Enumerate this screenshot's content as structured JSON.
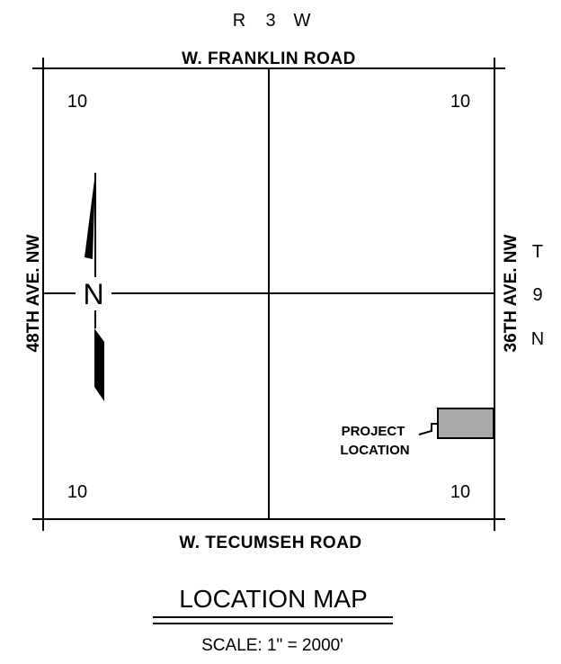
{
  "map": {
    "range": [
      "R",
      "3",
      "W"
    ],
    "township": [
      "T",
      "9",
      "N"
    ],
    "roads": {
      "north": "W. FRANKLIN ROAD",
      "south": "W. TECUMSEH ROAD",
      "west": "48TH AVE. NW",
      "east": "36TH AVE. NW"
    },
    "section_numbers": {
      "top_left": "10",
      "top_right": "10",
      "bottom_left": "10",
      "bottom_right": "10"
    },
    "north_arrow": {
      "label": "N"
    },
    "project": {
      "line1": "PROJECT",
      "line2": "LOCATION",
      "fill_color": "#a9a9a9"
    }
  },
  "caption": {
    "title": "LOCATION MAP",
    "scale": "SCALE: 1\" = 2000'"
  }
}
